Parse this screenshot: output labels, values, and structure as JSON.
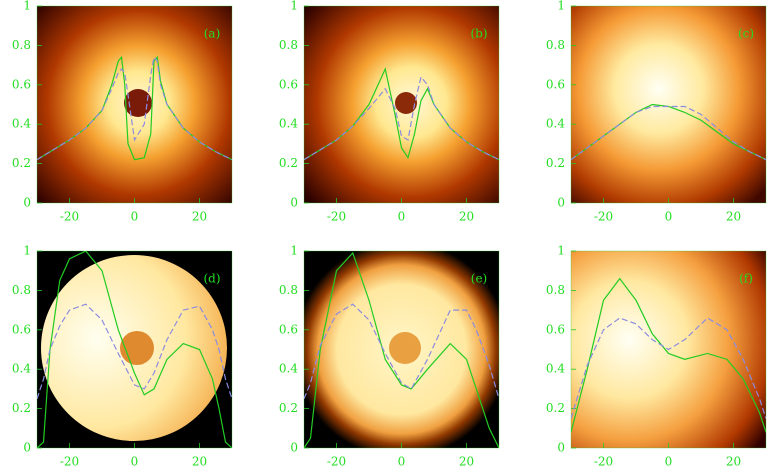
{
  "chart_data": [
    {
      "type": "line",
      "label": "(a)",
      "xlim": [
        -30,
        30
      ],
      "ylim": [
        0,
        1
      ],
      "xticks": [
        -20,
        0,
        20
      ],
      "yticks": [
        0,
        0.2,
        0.4,
        0.6,
        0.8,
        1
      ],
      "x": [
        -30,
        -25,
        -20,
        -15,
        -10,
        -7,
        -5,
        -4,
        -3,
        -2,
        0,
        3,
        5,
        6,
        7,
        8,
        10,
        15,
        20,
        25,
        30
      ],
      "series": [
        {
          "color": "#22cc22",
          "values": [
            0.22,
            0.27,
            0.32,
            0.38,
            0.47,
            0.6,
            0.72,
            0.74,
            0.6,
            0.3,
            0.22,
            0.23,
            0.35,
            0.72,
            0.74,
            0.62,
            0.5,
            0.38,
            0.31,
            0.26,
            0.22
          ]
        },
        {
          "color": "#8c8ce0",
          "dashed": true,
          "values": [
            0.22,
            0.27,
            0.32,
            0.38,
            0.47,
            0.58,
            0.66,
            0.68,
            0.66,
            0.55,
            0.32,
            0.4,
            0.65,
            0.74,
            0.72,
            0.6,
            0.5,
            0.38,
            0.31,
            0.26,
            0.22
          ]
        }
      ]
    },
    {
      "type": "line",
      "label": "(b)",
      "xlim": [
        -30,
        30
      ],
      "ylim": [
        0,
        1
      ],
      "xticks": [
        -20,
        0,
        20
      ],
      "yticks": [
        0,
        0.2,
        0.4,
        0.6,
        0.8,
        1
      ],
      "x": [
        -30,
        -25,
        -20,
        -15,
        -10,
        -5,
        -2,
        0,
        2,
        4,
        6,
        8,
        10,
        15,
        20,
        25,
        30
      ],
      "series": [
        {
          "color": "#22cc22",
          "values": [
            0.22,
            0.27,
            0.32,
            0.39,
            0.5,
            0.68,
            0.45,
            0.28,
            0.23,
            0.35,
            0.52,
            0.58,
            0.5,
            0.38,
            0.31,
            0.26,
            0.22
          ]
        },
        {
          "color": "#8c8ce0",
          "dashed": true,
          "values": [
            0.22,
            0.27,
            0.32,
            0.39,
            0.48,
            0.58,
            0.48,
            0.34,
            0.32,
            0.5,
            0.64,
            0.6,
            0.5,
            0.38,
            0.31,
            0.26,
            0.22
          ]
        }
      ]
    },
    {
      "type": "line",
      "label": "(c)",
      "xlim": [
        -30,
        30
      ],
      "ylim": [
        0,
        1
      ],
      "xticks": [
        -20,
        0,
        20
      ],
      "yticks": [
        0,
        0.2,
        0.4,
        0.6,
        0.8,
        1
      ],
      "x": [
        -30,
        -25,
        -20,
        -15,
        -10,
        -5,
        0,
        5,
        10,
        15,
        20,
        25,
        30
      ],
      "series": [
        {
          "color": "#22cc22",
          "values": [
            0.22,
            0.28,
            0.34,
            0.4,
            0.46,
            0.5,
            0.49,
            0.46,
            0.42,
            0.36,
            0.3,
            0.26,
            0.22
          ]
        },
        {
          "color": "#8c8ce0",
          "dashed": true,
          "values": [
            0.22,
            0.28,
            0.34,
            0.4,
            0.46,
            0.49,
            0.49,
            0.49,
            0.45,
            0.38,
            0.31,
            0.26,
            0.22
          ]
        }
      ]
    },
    {
      "type": "line",
      "label": "(d)",
      "xlim": [
        -30,
        30
      ],
      "ylim": [
        0,
        1
      ],
      "xticks": [
        -20,
        0,
        20
      ],
      "yticks": [
        0,
        0.2,
        0.4,
        0.6,
        0.8,
        1
      ],
      "x": [
        -30,
        -28,
        -26,
        -23,
        -20,
        -15,
        -10,
        -5,
        0,
        3,
        6,
        10,
        15,
        20,
        24,
        26,
        28,
        30
      ],
      "series": [
        {
          "color": "#22cc22",
          "values": [
            0,
            0.03,
            0.5,
            0.85,
            0.96,
            1.0,
            0.9,
            0.6,
            0.38,
            0.27,
            0.3,
            0.45,
            0.53,
            0.5,
            0.35,
            0.2,
            0.03,
            0
          ]
        },
        {
          "color": "#8c8ce0",
          "dashed": true,
          "values": [
            0.25,
            0.35,
            0.5,
            0.62,
            0.7,
            0.73,
            0.65,
            0.48,
            0.32,
            0.3,
            0.38,
            0.55,
            0.7,
            0.72,
            0.6,
            0.5,
            0.35,
            0.25
          ]
        }
      ]
    },
    {
      "type": "line",
      "label": "(e)",
      "xlim": [
        -30,
        30
      ],
      "ylim": [
        0,
        1
      ],
      "xticks": [
        -20,
        0,
        20
      ],
      "yticks": [
        0,
        0.2,
        0.4,
        0.6,
        0.8,
        1
      ],
      "x": [
        -30,
        -28,
        -25,
        -20,
        -15,
        -10,
        -5,
        0,
        3,
        8,
        15,
        20,
        23,
        27,
        30
      ],
      "series": [
        {
          "color": "#22cc22",
          "values": [
            0,
            0.05,
            0.5,
            0.9,
            0.99,
            0.75,
            0.45,
            0.32,
            0.3,
            0.4,
            0.53,
            0.45,
            0.3,
            0.1,
            0
          ]
        },
        {
          "color": "#8c8ce0",
          "dashed": true,
          "values": [
            0.25,
            0.33,
            0.52,
            0.68,
            0.73,
            0.65,
            0.48,
            0.33,
            0.3,
            0.45,
            0.7,
            0.7,
            0.6,
            0.42,
            0.25
          ]
        }
      ]
    },
    {
      "type": "line",
      "label": "(f)",
      "xlim": [
        -30,
        30
      ],
      "ylim": [
        0,
        1
      ],
      "xticks": [
        -20,
        0,
        20
      ],
      "yticks": [
        0,
        0.2,
        0.4,
        0.6,
        0.8,
        1
      ],
      "x": [
        -30,
        -25,
        -20,
        -15,
        -10,
        -5,
        0,
        5,
        12,
        18,
        23,
        28,
        30
      ],
      "series": [
        {
          "color": "#22cc22",
          "values": [
            0.08,
            0.4,
            0.75,
            0.86,
            0.75,
            0.58,
            0.48,
            0.45,
            0.48,
            0.45,
            0.35,
            0.18,
            0.08
          ]
        },
        {
          "color": "#8c8ce0",
          "dashed": true,
          "values": [
            0.15,
            0.42,
            0.6,
            0.66,
            0.63,
            0.55,
            0.5,
            0.55,
            0.66,
            0.6,
            0.45,
            0.25,
            0.15
          ]
        }
      ]
    }
  ]
}
